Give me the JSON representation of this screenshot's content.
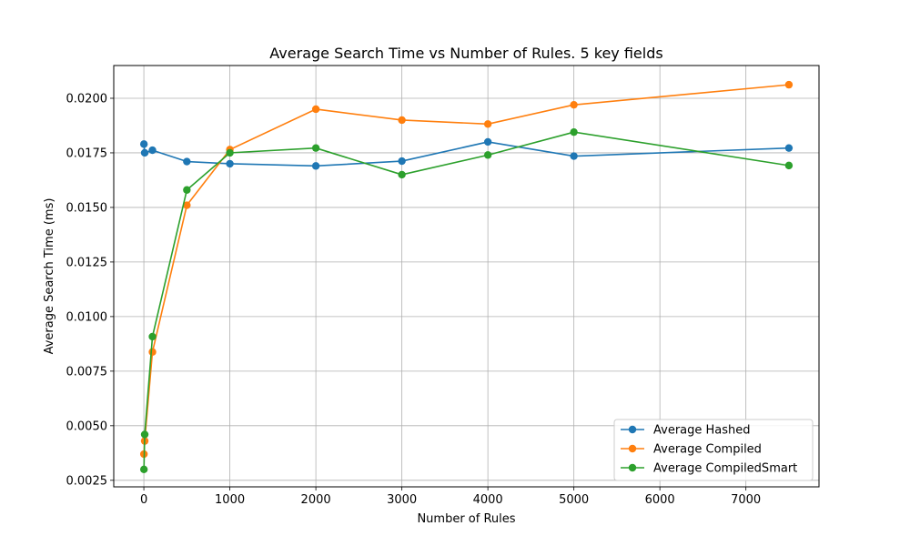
{
  "chart_data": {
    "type": "line",
    "title": "Average Search Time vs Number of Rules. 5 key fields",
    "xlabel": "Number of Rules",
    "ylabel": "Average Search Time (ms)",
    "xlim": [
      -350,
      7850
    ],
    "ylim": [
      0.0022,
      0.0215
    ],
    "xticks": [
      0,
      1000,
      2000,
      3000,
      4000,
      5000,
      6000,
      7000
    ],
    "xtick_labels": [
      "0",
      "1000",
      "2000",
      "3000",
      "4000",
      "5000",
      "6000",
      "7000"
    ],
    "yticks": [
      0.0025,
      0.005,
      0.0075,
      0.01,
      0.0125,
      0.015,
      0.0175,
      0.02
    ],
    "ytick_labels": [
      "0.0025",
      "0.0050",
      "0.0075",
      "0.0100",
      "0.0125",
      "0.0150",
      "0.0175",
      "0.0200"
    ],
    "grid": true,
    "legend_position": "bottom-right",
    "x": [
      1,
      10,
      100,
      500,
      1000,
      2000,
      3000,
      4000,
      5000,
      7500
    ],
    "series": [
      {
        "name": "Average Hashed",
        "color": "#1f77b4",
        "values": [
          0.0179,
          0.0175,
          0.01762,
          0.0171,
          0.017,
          0.0169,
          0.01712,
          0.018,
          0.01735,
          0.01772
        ]
      },
      {
        "name": "Average Compiled",
        "color": "#ff7f0e",
        "values": [
          0.0037,
          0.0043,
          0.00838,
          0.0151,
          0.01765,
          0.0195,
          0.019,
          0.01882,
          0.0197,
          0.02062
        ]
      },
      {
        "name": "Average CompiledSmart",
        "color": "#2ca02c",
        "values": [
          0.003,
          0.0046,
          0.00908,
          0.0158,
          0.0175,
          0.01772,
          0.0165,
          0.0174,
          0.01845,
          0.01692
        ]
      }
    ]
  }
}
